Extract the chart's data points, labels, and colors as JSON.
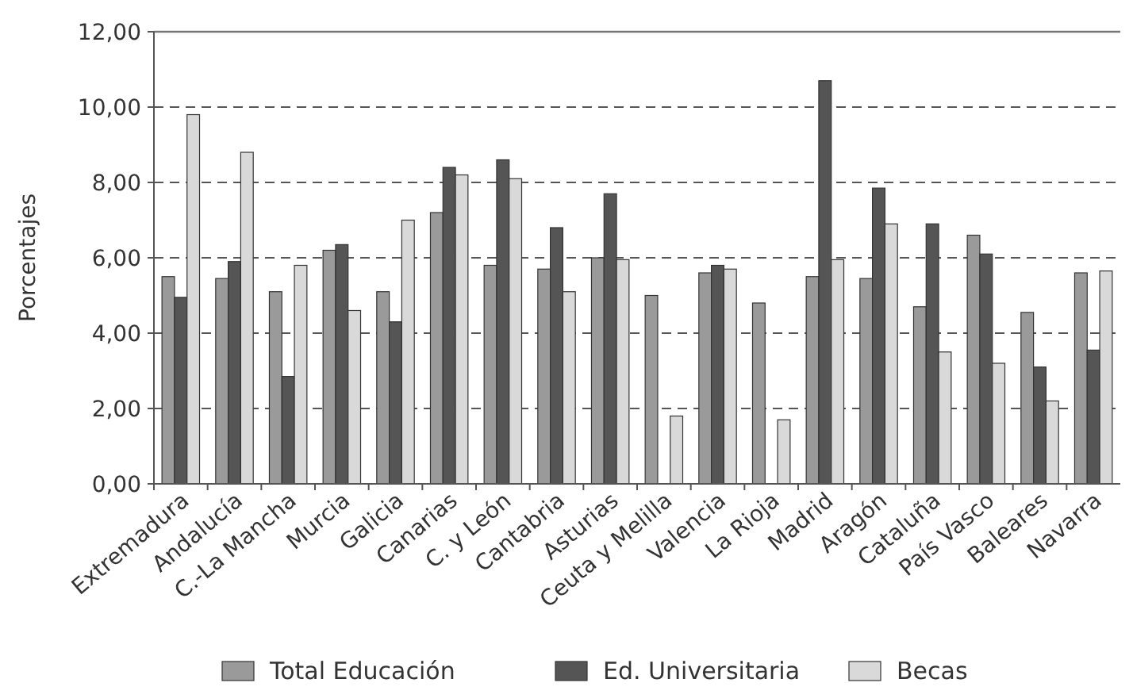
{
  "chart_data": {
    "type": "bar",
    "ylabel": "Porcentajes",
    "categories": [
      "Extremadura",
      "Andalucía",
      "C.-La Mancha",
      "Murcia",
      "Galicia",
      "Canarias",
      "C. y León",
      "Cantabria",
      "Asturias",
      "Ceuta y Melilla",
      "Valencia",
      "La Rioja",
      "Madrid",
      "Aragón",
      "Cataluña",
      "País Vasco",
      "Baleares",
      "Navarra"
    ],
    "series": [
      {
        "name": "Total Educación",
        "color": "#9a9a9a",
        "values": [
          5.5,
          5.45,
          5.1,
          6.2,
          5.1,
          7.2,
          5.8,
          5.7,
          6.0,
          5.0,
          5.6,
          4.8,
          5.5,
          5.45,
          4.7,
          6.6,
          4.55,
          5.6
        ]
      },
      {
        "name": "Ed. Universitaria",
        "color": "#555555",
        "values": [
          4.95,
          5.9,
          2.85,
          6.35,
          4.3,
          8.4,
          8.6,
          6.8,
          7.7,
          null,
          5.8,
          null,
          10.7,
          7.85,
          6.9,
          6.1,
          3.1,
          3.55
        ]
      },
      {
        "name": "Becas",
        "color": "#d9d9d9",
        "values": [
          9.8,
          8.8,
          5.8,
          4.6,
          7.0,
          8.2,
          8.1,
          5.1,
          5.95,
          1.8,
          5.7,
          1.7,
          5.95,
          6.9,
          3.5,
          3.2,
          2.2,
          5.65
        ]
      }
    ],
    "ylim": [
      0,
      12
    ],
    "yticks": [
      {
        "value": 0,
        "label": "0,00"
      },
      {
        "value": 2,
        "label": "2,00"
      },
      {
        "value": 4,
        "label": "4,00"
      },
      {
        "value": 6,
        "label": "6,00"
      },
      {
        "value": 8,
        "label": "8,00"
      },
      {
        "value": 10,
        "label": "10,00"
      },
      {
        "value": 12,
        "label": "12,00"
      }
    ],
    "grid": "y",
    "line_style": "dashed",
    "legend": "bottom"
  }
}
